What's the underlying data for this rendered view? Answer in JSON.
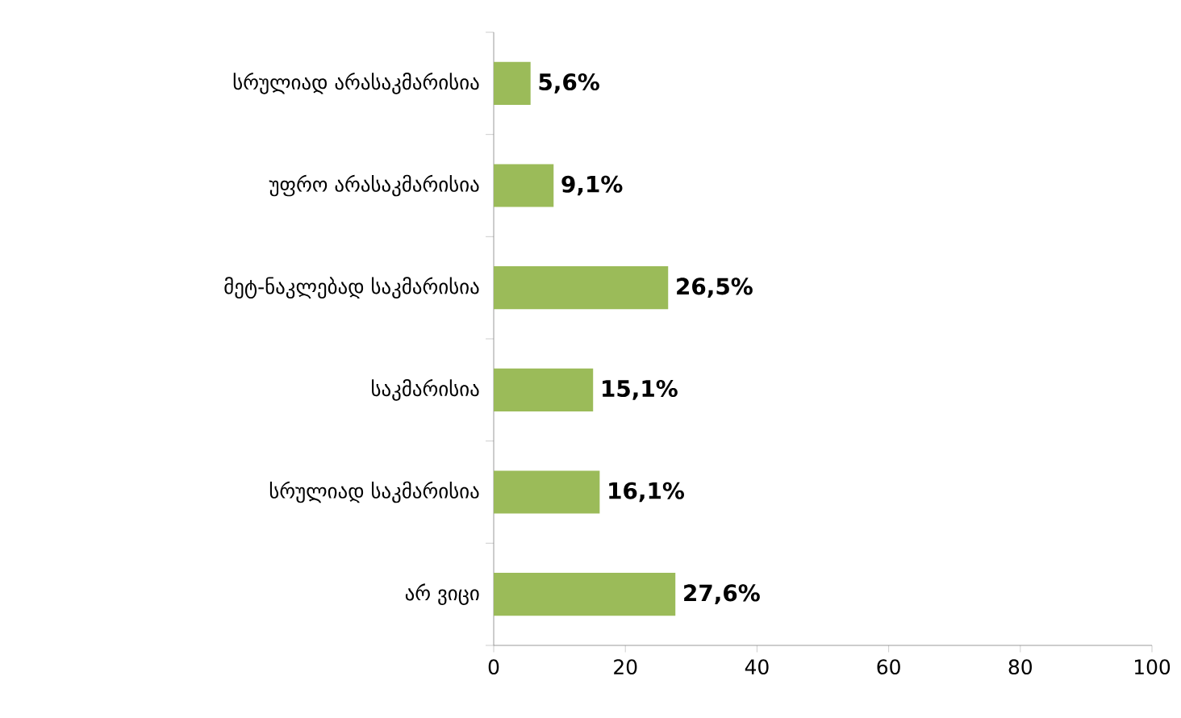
{
  "chart_data": {
    "type": "bar",
    "orientation": "horizontal",
    "categories": [
      "სრულიად არასაკმარისია",
      "უფრო არასაკმარისია",
      "მეტ-ნაკლებად საკმარისია",
      "საკმარისია",
      "სრულიად საკმარისია",
      "არ ვიცი"
    ],
    "values": [
      5.6,
      9.1,
      26.5,
      15.1,
      16.1,
      27.6
    ],
    "value_labels": [
      "5,6%",
      "9,1%",
      "26,5%",
      "15,1%",
      "16,1%",
      "27,6%"
    ],
    "color": "#9bbb59",
    "xlim": [
      0,
      100
    ],
    "xticks": [
      0,
      20,
      40,
      60,
      80,
      100
    ]
  }
}
